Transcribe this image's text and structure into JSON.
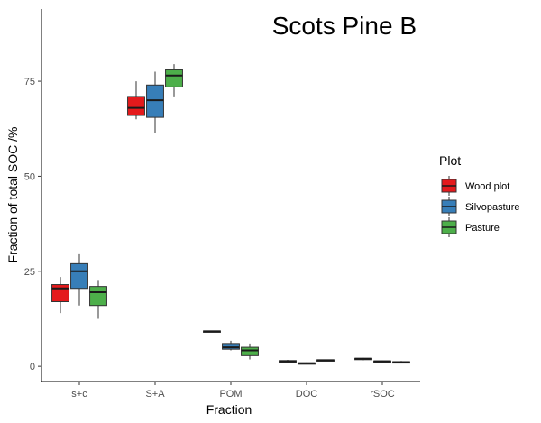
{
  "chart_data": {
    "type": "box",
    "title": "Scots Pine B",
    "xlabel": "Fraction",
    "ylabel": "Fraction of total SOC /%",
    "categories": [
      "s+c",
      "S+A",
      "POM",
      "DOC",
      "rSOC"
    ],
    "yticks": [
      0,
      25,
      50,
      75
    ],
    "ylim": [
      -4,
      94
    ],
    "grid": false,
    "legend": {
      "title": "Plot",
      "position": "right"
    },
    "series": [
      {
        "name": "Wood plot",
        "color": "#e41a1c",
        "boxes": [
          {
            "min": 14,
            "q1": 17,
            "median": 20.5,
            "q3": 21.5,
            "max": 23.5
          },
          {
            "min": 65,
            "q1": 66,
            "median": 68,
            "q3": 71,
            "max": 75
          },
          {
            "min": 9,
            "q1": 9,
            "median": 9.2,
            "q3": 9.3,
            "max": 9.4
          },
          {
            "min": 1,
            "q1": 1.1,
            "median": 1.3,
            "q3": 1.5,
            "max": 1.7
          },
          {
            "min": 1.6,
            "q1": 1.8,
            "median": 2,
            "q3": 2.1,
            "max": 2.2
          }
        ]
      },
      {
        "name": "Silvopasture",
        "color": "#377eb8",
        "boxes": [
          {
            "min": 16,
            "q1": 20.5,
            "median": 25,
            "q3": 27,
            "max": 29.5
          },
          {
            "min": 61.5,
            "q1": 65.5,
            "median": 70,
            "q3": 74,
            "max": 77.5
          },
          {
            "min": 4.2,
            "q1": 4.5,
            "median": 5,
            "q3": 6,
            "max": 6.7
          },
          {
            "min": 0.6,
            "q1": 0.7,
            "median": 0.8,
            "q3": 0.9,
            "max": 1
          },
          {
            "min": 1.1,
            "q1": 1.2,
            "median": 1.3,
            "q3": 1.4,
            "max": 1.5
          }
        ]
      },
      {
        "name": "Pasture",
        "color": "#4daf4a",
        "boxes": [
          {
            "min": 12.5,
            "q1": 16,
            "median": 19.5,
            "q3": 21,
            "max": 22.5
          },
          {
            "min": 71,
            "q1": 73.5,
            "median": 76.5,
            "q3": 78,
            "max": 79.5
          },
          {
            "min": 1.8,
            "q1": 2.8,
            "median": 4.2,
            "q3": 5,
            "max": 6
          },
          {
            "min": 1.4,
            "q1": 1.5,
            "median": 1.6,
            "q3": 1.7,
            "max": 1.8
          },
          {
            "min": 0.8,
            "q1": 1,
            "median": 1.1,
            "q3": 1.2,
            "max": 1.4
          }
        ]
      }
    ]
  }
}
